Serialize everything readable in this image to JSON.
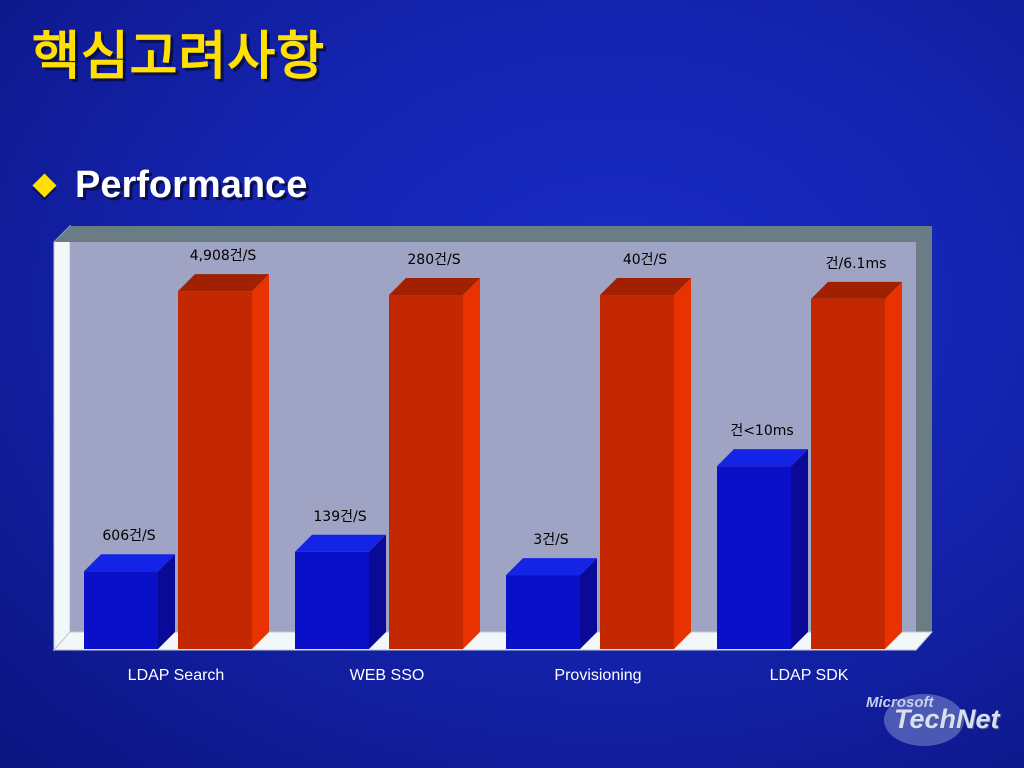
{
  "slide": {
    "title": "핵심고려사항",
    "bullet": "Performance"
  },
  "logo": {
    "line1": "Microsoft",
    "line2": "TechNet"
  },
  "colors": {
    "background": "#1424b0",
    "title": "#ffe000",
    "series_blue": "#0a10c8",
    "series_red": "#c42800",
    "plot_area": "#a0a4c4"
  },
  "chart_data": {
    "type": "bar",
    "categories": [
      "LDAP Search",
      "WEB SSO",
      "Provisioning",
      "LDAP SDK"
    ],
    "series": [
      {
        "values": [
          0.2,
          0.25,
          0.19,
          0.47
        ],
        "labels": [
          "606건/S",
          "139건/S",
          "3건/S",
          "건<10ms"
        ]
      },
      {
        "values": [
          0.92,
          0.91,
          0.91,
          0.9
        ],
        "labels": [
          "4,908건/S",
          "280건/S",
          "40건/S",
          "건/6.1ms"
        ]
      }
    ],
    "ylim": [
      0,
      1
    ],
    "grid": false,
    "legend": "none",
    "value_axis_labels": "none"
  }
}
